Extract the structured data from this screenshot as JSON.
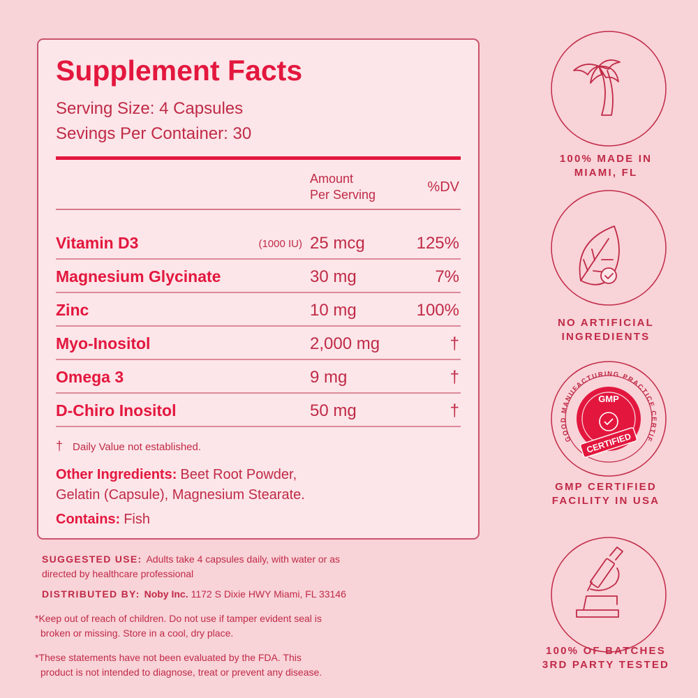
{
  "panel": {
    "title": "Supplement Facts",
    "serving_size": "Serving Size: 4 Capsules",
    "servings_per_container": "Sevings Per Container: 30",
    "header": {
      "amount": [
        "Amount",
        "Per Serving"
      ],
      "dv": "%DV"
    },
    "rows": [
      {
        "name": "Vitamin D3",
        "note": "(1000 IU)",
        "amount": "25 mcg",
        "dv": "125%"
      },
      {
        "name": "Magnesium Glycinate",
        "amount": "30 mg",
        "dv": "7%"
      },
      {
        "name": "Zinc",
        "amount": "10 mg",
        "dv": "100%"
      },
      {
        "name": "Myo-Inositol",
        "amount": "2,000 mg",
        "dv": "†"
      },
      {
        "name": "Omega 3",
        "amount": "9 mg",
        "dv": "†"
      },
      {
        "name": "D-Chiro Inositol",
        "amount": "50 mg",
        "dv": "†"
      }
    ],
    "footnote": {
      "symbol": "†",
      "text": "Daily Value not established."
    },
    "other_ingredients": {
      "label": "Other Ingredients:",
      "lines": [
        "Beet Root Powder,",
        "Gelatin (Capsule), Magnesium Stearate."
      ]
    },
    "contains": {
      "label": "Contains:",
      "text": "Fish"
    }
  },
  "suggested_use": {
    "label": "SUGGESTED USE:",
    "lines": [
      "Adults take 4 capsules daily, with water or as",
      "directed by healthcare professional"
    ]
  },
  "distributed_by": {
    "label": "DISTRIBUTED BY:",
    "name": "Noby Inc.",
    "address": "1172 S Dixie HWY Miami, FL 33146"
  },
  "warnings": [
    [
      "*Keep out of reach of children. Do not use if tamper evident seal is",
      "broken or missing. Store in a cool, dry place."
    ],
    [
      "*These statements have not been evaluated by the FDA. This",
      "product is not intended to diagnose, treat or prevent any disease."
    ]
  ],
  "badges": [
    {
      "lines": [
        "100% MADE IN",
        "MIAMI, FL"
      ]
    },
    {
      "lines": [
        "NO ARTIFICIAL",
        "INGREDIENTS"
      ]
    },
    {
      "seal": {
        "ring": "GOOD MANUFACTURING PRACTICE CERTIFIED",
        "top": "GMP",
        "band": "CERTIFIED"
      },
      "lines": [
        "GMP CERTIFIED",
        "FACILITY IN USA"
      ]
    },
    {
      "lines": [
        "100% OF BATCHES",
        "3RD PARTY TESTED"
      ]
    }
  ]
}
